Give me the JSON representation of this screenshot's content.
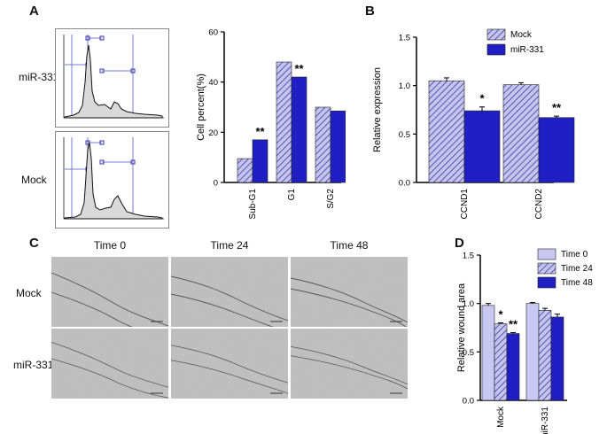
{
  "panels": {
    "A": "A",
    "B": "B",
    "C": "C",
    "D": "D"
  },
  "flow": {
    "rows": [
      "miR-331",
      "Mock"
    ]
  },
  "colors": {
    "mock_hatch": "#b9b9e6",
    "mir_fill": "#1f1fc4",
    "time0_fill": "#c8c8f2",
    "time48_fill": "#1010cc",
    "axis": "#000000"
  },
  "chart_data": [
    {
      "id": "A",
      "type": "bar",
      "ylabel": "Cell percent(%)",
      "ylim": [
        0,
        60
      ],
      "yticks": [
        "0",
        "20",
        "40",
        "60"
      ],
      "categories": [
        "Sub-G1",
        "G1",
        "S/G2"
      ],
      "series": [
        {
          "style": "hatch",
          "values": [
            9.5,
            48,
            30
          ]
        },
        {
          "style": "solid",
          "values": [
            17,
            42,
            28.5
          ]
        }
      ],
      "annotations": [
        {
          "category": 1,
          "series": 1,
          "text": "**"
        },
        {
          "category": 0,
          "series": 1,
          "text": "**"
        }
      ]
    },
    {
      "id": "B",
      "type": "bar",
      "ylabel": "Relative expression",
      "ylim": [
        0,
        1.5
      ],
      "yticks": [
        "0.0",
        "0.5",
        "1.0",
        "1.5"
      ],
      "categories": [
        "CCND1",
        "CCND2"
      ],
      "series": [
        {
          "name": "Mock",
          "style": "hatch",
          "values": [
            1.05,
            1.01
          ],
          "errors": [
            0.03,
            0.02
          ]
        },
        {
          "name": "miR-331",
          "style": "solid",
          "values": [
            0.74,
            0.67
          ],
          "errors": [
            0.04,
            0.015
          ]
        }
      ],
      "annotations": [
        {
          "category": 0,
          "series": 1,
          "text": "*"
        },
        {
          "category": 1,
          "series": 1,
          "text": "**"
        }
      ],
      "legend": "top-right"
    },
    {
      "id": "D",
      "type": "bar",
      "ylabel": "Relative wound area",
      "ylim": [
        0,
        1.5
      ],
      "yticks": [
        "0.0",
        "0.5",
        "1.0",
        "1.5"
      ],
      "categories": [
        "Mock",
        "miR-331"
      ],
      "series": [
        {
          "name": "Time 0",
          "style": "light",
          "values": [
            0.98,
            1.0
          ],
          "errors": [
            0.02,
            0.01
          ]
        },
        {
          "name": "Time 24",
          "style": "hatch",
          "values": [
            0.79,
            0.93
          ],
          "errors": [
            0.01,
            0.02
          ]
        },
        {
          "name": "Time 48",
          "style": "solid",
          "values": [
            0.69,
            0.86
          ],
          "errors": [
            0.01,
            0.03
          ]
        }
      ],
      "annotations": [
        {
          "category": 0,
          "series": 1,
          "text": "*"
        },
        {
          "category": 0,
          "series": 2,
          "text": "**"
        }
      ],
      "legend": "top-right"
    }
  ],
  "wound": {
    "times": [
      "Time 0",
      "Time 24",
      "Time 48"
    ],
    "rows": [
      "Mock",
      "miR-331"
    ]
  }
}
